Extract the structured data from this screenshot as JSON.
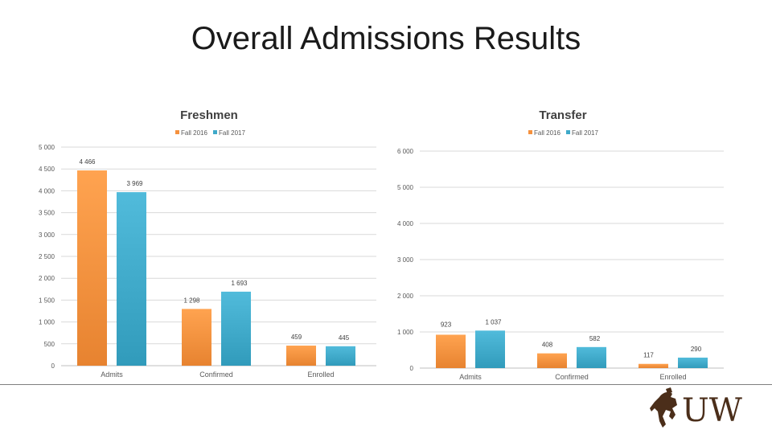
{
  "slide": {
    "title": "Overall Admissions Results"
  },
  "colors": {
    "fall_2016": "#f5913e",
    "fall_2017": "#3fa9c9",
    "logo_brown": "#4b2e1a"
  },
  "logo": {
    "text": "UW",
    "icon": "bucking-horse-rider-icon"
  },
  "chart_data": [
    {
      "type": "bar",
      "title": "Freshmen",
      "categories": [
        "Admits",
        "Confirmed",
        "Enrolled"
      ],
      "series": [
        {
          "name": "Fall 2016",
          "values": [
            4466,
            1298,
            459
          ],
          "labels": [
            "4 466",
            "1 298",
            "459"
          ]
        },
        {
          "name": "Fall 2017",
          "values": [
            3969,
            1693,
            445
          ],
          "labels": [
            "3 969",
            "1 693",
            "445"
          ]
        }
      ],
      "ylim": [
        0,
        5000
      ],
      "yticks": [
        0,
        500,
        1000,
        1500,
        2000,
        2500,
        3000,
        3500,
        4000,
        4500,
        5000
      ],
      "ytick_labels": [
        "0",
        "500",
        "1 000",
        "1 500",
        "2 000",
        "2 500",
        "3 000",
        "3 500",
        "4 000",
        "4 500",
        "5 000"
      ],
      "grid": true,
      "legend": "top"
    },
    {
      "type": "bar",
      "title": "Transfer",
      "categories": [
        "Admits",
        "Confirmed",
        "Enrolled"
      ],
      "series": [
        {
          "name": "Fall 2016",
          "values": [
            923,
            408,
            117
          ],
          "labels": [
            "923",
            "408",
            "117"
          ]
        },
        {
          "name": "Fall 2017",
          "values": [
            1037,
            582,
            290
          ],
          "labels": [
            "1 037",
            "582",
            "290"
          ]
        }
      ],
      "ylim": [
        0,
        6000
      ],
      "yticks": [
        0,
        1000,
        2000,
        3000,
        4000,
        5000,
        6000
      ],
      "ytick_labels": [
        "0",
        "1 000",
        "2 000",
        "3 000",
        "4 000",
        "5 000",
        "6 000"
      ],
      "grid": true,
      "legend": "top-right"
    }
  ]
}
